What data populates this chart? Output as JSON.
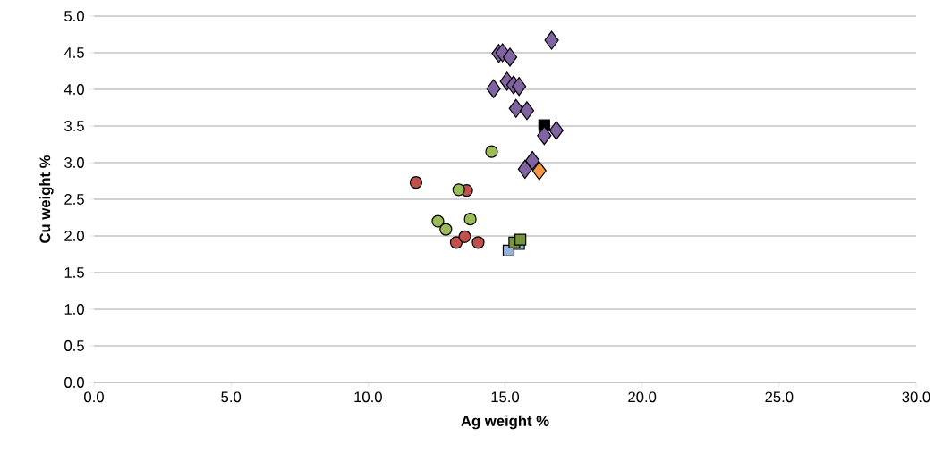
{
  "chart_data": {
    "type": "scatter",
    "xlabel": "Ag weight %",
    "ylabel": "Cu weight %",
    "xlim": [
      0,
      30
    ],
    "ylim": [
      0,
      5
    ],
    "xticks": [
      {
        "value": 0,
        "label": "0.0"
      },
      {
        "value": 5,
        "label": "5.0"
      },
      {
        "value": 10,
        "label": "10.0"
      },
      {
        "value": 15,
        "label": "15.0"
      },
      {
        "value": 20,
        "label": "20.0"
      },
      {
        "value": 25,
        "label": "25.0"
      },
      {
        "value": 30,
        "label": "30.0"
      }
    ],
    "yticks": [
      {
        "value": 0,
        "label": "0.0"
      },
      {
        "value": 0.5,
        "label": "0.5"
      },
      {
        "value": 1,
        "label": "1.0"
      },
      {
        "value": 1.5,
        "label": "1.5"
      },
      {
        "value": 2,
        "label": "2.0"
      },
      {
        "value": 2.5,
        "label": "2.5"
      },
      {
        "value": 3,
        "label": "3.0"
      },
      {
        "value": 3.5,
        "label": "3.5"
      },
      {
        "value": 4,
        "label": "4.0"
      },
      {
        "value": 4.5,
        "label": "4.5"
      },
      {
        "value": 5,
        "label": "5.0"
      }
    ],
    "grid": "y",
    "series": [
      {
        "color": "#c0504d",
        "marker": "circle",
        "x": [
          11.75,
          13.6,
          13.22,
          13.53,
          14.02
        ],
        "values": [
          2.73,
          2.62,
          1.91,
          1.99,
          1.91
        ]
      },
      {
        "color": "#9bbb59",
        "marker": "circle",
        "x": [
          14.51,
          13.31,
          12.55,
          12.84,
          13.73
        ],
        "values": [
          3.15,
          2.63,
          2.2,
          2.09,
          2.23
        ]
      },
      {
        "color": "#95b3d7",
        "marker": "square",
        "x": [
          15.13,
          15.51
        ],
        "values": [
          1.8,
          1.89
        ]
      },
      {
        "color": "#77933c",
        "marker": "square",
        "x": [
          15.34,
          15.56
        ],
        "values": [
          1.91,
          1.95
        ]
      },
      {
        "color": "#000000",
        "marker": "square",
        "x": [
          16.43
        ],
        "values": [
          3.51
        ]
      },
      {
        "color": "#8064a2",
        "marker": "diamond",
        "x": [
          16.7,
          14.77,
          14.91,
          15.18,
          14.58,
          15.07,
          15.31,
          15.51,
          15.4,
          15.8,
          16.43,
          16.87,
          16.0,
          15.73
        ],
        "values": [
          4.67,
          4.49,
          4.5,
          4.44,
          4.01,
          4.11,
          4.06,
          4.04,
          3.74,
          3.71,
          3.37,
          3.44,
          3.03,
          2.91
        ]
      },
      {
        "color": "#f79646",
        "marker": "diamond",
        "x": [
          16.25
        ],
        "values": [
          2.89
        ]
      }
    ]
  }
}
